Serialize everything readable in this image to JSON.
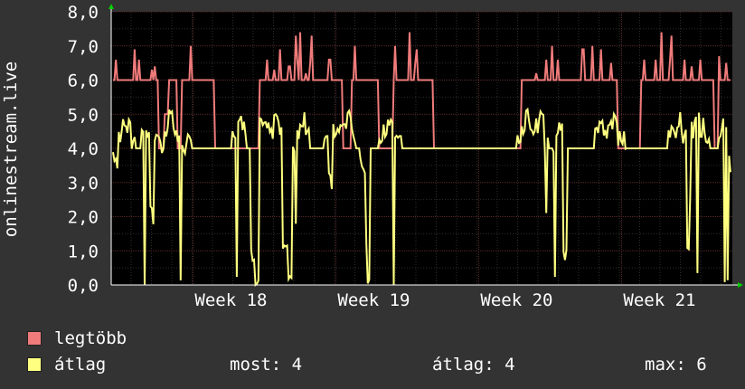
{
  "chart_data": {
    "type": "line",
    "ylabel": "onlinestream.live",
    "ylim": [
      0,
      8
    ],
    "y_ticks": [
      "0,0",
      "1,0",
      "2,0",
      "3,0",
      "4,0",
      "5,0",
      "6,0",
      "7,0",
      "8,0"
    ],
    "x_ticks": [
      "Week 18",
      "Week 19",
      "Week 20",
      "Week 21"
    ],
    "grid": true,
    "legend_placement": "bottom",
    "colors": {
      "background": "#333333",
      "plot_bg": "#000000",
      "grid": "#5a2a2a",
      "grid_minor": "#2e2e2e",
      "series_max": "#f07b7b",
      "series_avg": "#ffff80",
      "text": "#ffffff",
      "axis_arrow": "#00cc00"
    },
    "series": [
      {
        "name": "legtöbb",
        "values": [
          6,
          6,
          6,
          6,
          6,
          6,
          6,
          6,
          6,
          6,
          4,
          5,
          6,
          6,
          4,
          6,
          6,
          6,
          6,
          6,
          6,
          6,
          4,
          4,
          4,
          4,
          4,
          4,
          4,
          4,
          4,
          4,
          6,
          6,
          6,
          6,
          6,
          6,
          6,
          6,
          6,
          6,
          6,
          6,
          6,
          6,
          6,
          6,
          6,
          6,
          4,
          4,
          6,
          6,
          6,
          6,
          6,
          6,
          4,
          4,
          4,
          6,
          6,
          6,
          6,
          6,
          6,
          6,
          6,
          6,
          4,
          4,
          4,
          4,
          4,
          4,
          4,
          4,
          4,
          4,
          4,
          4,
          4,
          4,
          4,
          4,
          4,
          4,
          4,
          6,
          6,
          6,
          6,
          6,
          6,
          6,
          6,
          6,
          6,
          6,
          6,
          6,
          6,
          6,
          6,
          6,
          6,
          6,
          6,
          6,
          4,
          4,
          4,
          4,
          4,
          6,
          6,
          6,
          6,
          6,
          6,
          6,
          6,
          6,
          6,
          6,
          6,
          6,
          6,
          6,
          6,
          4,
          6,
          6,
          6
        ],
        "peaks": [
          6.6,
          6.4,
          6.6,
          6.2,
          6.9,
          6.3,
          7.0,
          6.6,
          6.7,
          7.4,
          6.5,
          7.0,
          6.6,
          7.3,
          6.7,
          6.9,
          7.4,
          6.7,
          7.0,
          6.5,
          6.9,
          6.6,
          6.9,
          6.3,
          6.8,
          6.6,
          7.0,
          6.6,
          7.0,
          6.6,
          6.4
        ]
      },
      {
        "name": "átlag",
        "values": [
          3.6,
          4.3,
          4.8,
          4.6,
          4.2,
          4.0,
          4.5,
          4.3,
          2.0,
          4.4,
          4.1,
          4.4,
          4.9,
          4.5,
          4.3,
          4.1,
          4.3,
          4.0,
          4.0,
          4.0,
          4.0,
          4.0,
          4.0,
          4.0,
          4.0,
          4.0,
          4.4,
          4.8,
          4.6,
          4.0,
          1.0,
          0.0,
          4.7,
          4.5,
          4.5,
          4.9,
          4.6,
          1.2,
          0.0,
          4.1,
          4.5,
          4.8,
          4.4,
          4.0,
          4.0,
          4.0,
          4.2,
          3.0,
          4.5,
          4.6,
          4.8,
          4.9,
          4.4,
          4.0,
          3.5,
          0.0,
          4.0,
          4.0,
          4.3,
          4.6,
          4.8,
          4.4,
          4.2,
          4.0,
          4.0,
          4.0,
          4.0,
          4.0,
          4.0,
          4.0,
          4.0,
          4.0,
          4.0,
          4.0,
          4.0,
          4.0,
          4.0,
          4.0,
          4.0,
          4.0,
          4.0,
          4.0,
          4.0,
          4.0,
          4.0,
          4.0,
          4.0,
          4.0,
          4.3,
          4.6,
          4.9,
          4.4,
          4.6,
          4.8,
          4.2,
          4.0,
          4.1,
          4.6,
          0.9,
          4.0,
          4.0,
          4.0,
          4.0,
          4.0,
          4.0,
          4.4,
          4.7,
          4.4,
          4.6,
          4.9,
          4.3,
          4.2,
          4.0,
          4.0,
          4.0,
          4.0,
          4.0,
          4.0,
          4.0,
          4.0,
          4.0,
          4.4,
          4.6,
          4.9,
          4.4,
          1.0,
          4.5,
          4.8,
          4.6,
          4.3,
          4.0,
          4.0,
          4.6,
          4.9,
          3.6
        ],
        "dips": [
          1.5,
          0.9,
          0.0,
          0.1,
          3.2,
          1.0,
          0.0,
          0.0,
          0.1,
          1.0,
          0.0,
          2.0,
          0.3,
          0.0,
          2.5,
          1.9,
          2.1,
          0.0,
          1.0,
          0.0,
          0.0,
          2.7,
          1.0,
          2.9
        ]
      }
    ],
    "stats": {
      "most_label": "most:",
      "most_value": "4",
      "atlag_label": "átlag:",
      "atlag_value": "4",
      "max_label": "max:",
      "max_value": "6"
    }
  }
}
